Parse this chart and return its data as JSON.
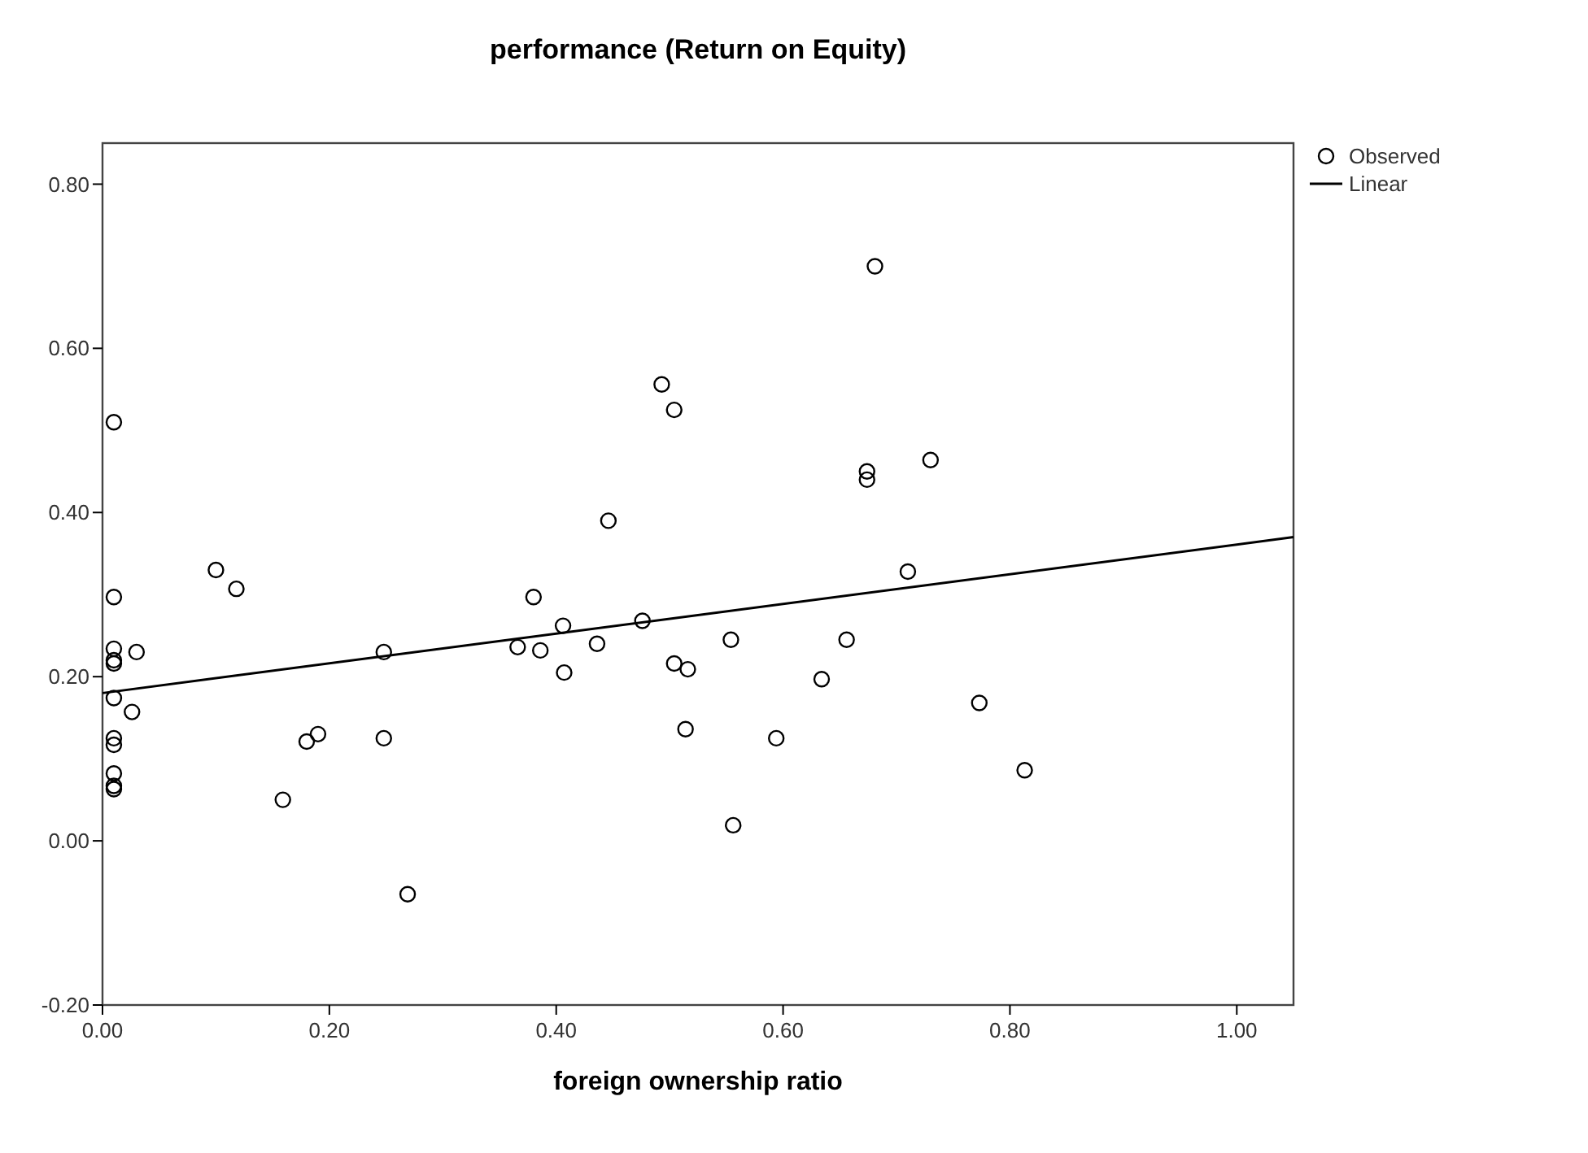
{
  "chart_data": {
    "type": "scatter",
    "title": "performance (Return on Equity)",
    "xlabel": "foreign ownership ratio",
    "xlim": [
      0,
      1.05
    ],
    "ylim": [
      -0.2,
      0.85
    ],
    "xticks": [
      {
        "value": 0,
        "label": "0.00"
      },
      {
        "value": 0.2,
        "label": "0.20"
      },
      {
        "value": 0.4,
        "label": "0.40"
      },
      {
        "value": 0.6,
        "label": "0.60"
      },
      {
        "value": 0.8,
        "label": "0.80"
      },
      {
        "value": 1,
        "label": "1.00"
      }
    ],
    "yticks": [
      {
        "value": -0.2,
        "label": "-0.20"
      },
      {
        "value": 0,
        "label": "0.00"
      },
      {
        "value": 0.2,
        "label": "0.20"
      },
      {
        "value": 0.4,
        "label": "0.40"
      },
      {
        "value": 0.6,
        "label": "0.60"
      },
      {
        "value": 0.8,
        "label": "0.80"
      }
    ],
    "grid": false,
    "legend": "top right",
    "marker": "circle",
    "series": [
      {
        "name": "Observed",
        "color": "#000000",
        "x": [
          0.01,
          0.01,
          0.01,
          0.01,
          0.01,
          0.03,
          0.01,
          0.026,
          0.01,
          0.01,
          0.01,
          0.01,
          0.01,
          0.1,
          0.118,
          0.159,
          0.18,
          0.19,
          0.248,
          0.248,
          0.269,
          0.366,
          0.38,
          0.386,
          0.406,
          0.407,
          0.436,
          0.446,
          0.476,
          0.493,
          0.504,
          0.504,
          0.516,
          0.514,
          0.554,
          0.556,
          0.594,
          0.634,
          0.656,
          0.674,
          0.674,
          0.681,
          0.73,
          0.71,
          0.773,
          0.813
        ],
        "values": [
          0.51,
          0.297,
          0.234,
          0.22,
          0.216,
          0.23,
          0.174,
          0.157,
          0.125,
          0.117,
          0.082,
          0.067,
          0.063,
          0.33,
          0.307,
          0.05,
          0.121,
          0.13,
          0.23,
          0.125,
          -0.065,
          0.236,
          0.297,
          0.232,
          0.262,
          0.205,
          0.24,
          0.39,
          0.268,
          0.556,
          0.525,
          0.216,
          0.209,
          0.136,
          0.245,
          0.019,
          0.125,
          0.197,
          0.245,
          0.45,
          0.44,
          0.7,
          0.464,
          0.328,
          0.168,
          0.086
        ]
      },
      {
        "name": "Linear",
        "type": "line",
        "color": "#000000",
        "marker": "none",
        "x": [
          0,
          1.05
        ],
        "values": [
          0.18,
          0.37
        ]
      }
    ]
  }
}
